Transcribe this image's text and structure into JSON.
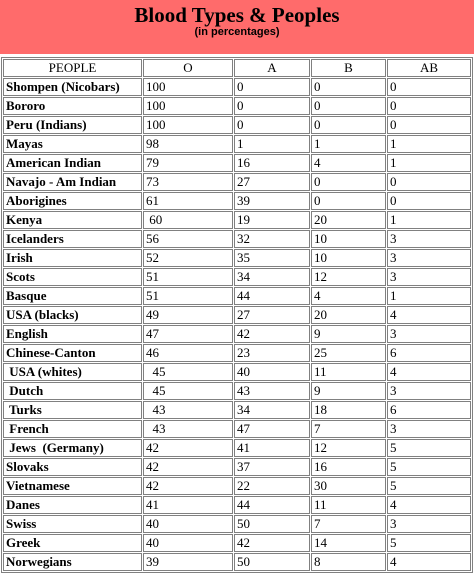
{
  "title": "Blood Types & Peoples",
  "subtitle": "(in percentages)",
  "columns": [
    "PEOPLE",
    "O",
    "A",
    "B",
    "AB"
  ],
  "rows": [
    [
      "Shompen (Nicobars)",
      "100",
      "0",
      "0",
      "0"
    ],
    [
      "Bororo",
      "100",
      "0",
      "0",
      "0"
    ],
    [
      "Peru (Indians)",
      "100",
      "0",
      "0",
      "0"
    ],
    [
      "Mayas",
      "98",
      "1",
      "1",
      "1"
    ],
    [
      "American Indian",
      "79",
      "16",
      "4",
      "1"
    ],
    [
      "Navajo - Am Indian",
      "73",
      "27",
      "0",
      "0"
    ],
    [
      "Aborigines",
      "61",
      "39",
      "0",
      "0"
    ],
    [
      "Kenya",
      " 60",
      "19",
      "20",
      "1"
    ],
    [
      "Icelanders",
      "56",
      "32",
      "10",
      "3"
    ],
    [
      "Irish",
      "52",
      "35",
      "10",
      "3"
    ],
    [
      "Scots",
      "51",
      "34",
      "12",
      "3"
    ],
    [
      "Basque",
      "51",
      "44",
      "4",
      "1"
    ],
    [
      "USA (blacks)",
      "49",
      "27",
      "20",
      "4"
    ],
    [
      "English",
      "47",
      "42",
      "9",
      "3"
    ],
    [
      "Chinese-Canton",
      "46",
      "23",
      "25",
      "6"
    ],
    [
      " USA (whites)",
      "  45",
      "40",
      "11",
      "4"
    ],
    [
      " Dutch",
      "  45",
      "43",
      "9",
      "3"
    ],
    [
      " Turks",
      "  43",
      "34",
      "18",
      "6"
    ],
    [
      " French",
      "  43",
      "47",
      "7",
      "3"
    ],
    [
      " Jews  (Germany)",
      "42",
      "41",
      "12",
      "5"
    ],
    [
      "Slovaks",
      "42",
      "37",
      "16",
      "5"
    ],
    [
      "Vietnamese",
      "42",
      "22",
      "30",
      "5"
    ],
    [
      "Danes",
      "41",
      "44",
      "11",
      "4"
    ],
    [
      "Swiss",
      "40",
      "50",
      "7",
      "3"
    ],
    [
      "Greek",
      "40",
      "42",
      "14",
      "5"
    ],
    [
      "Norwegians",
      "39",
      "50",
      "8",
      "4"
    ]
  ]
}
